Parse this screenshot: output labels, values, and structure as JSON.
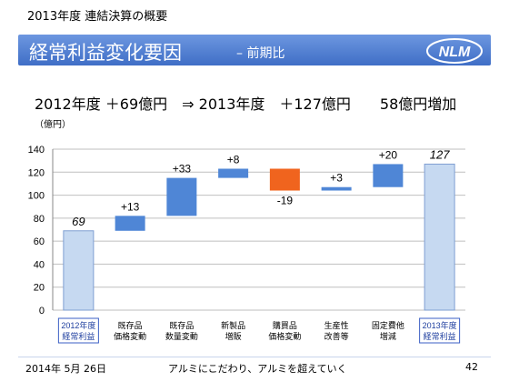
{
  "header": {
    "caption": "2013年度 連結決算の概要",
    "title": "経常利益変化要因",
    "subtitle": "– 前期比",
    "logo_text": "NLM"
  },
  "headline": "2012年度 ＋69億円　⇒ 2013年度　＋127億円　　58億円増加",
  "footer": {
    "date": "2014年 5月 26日",
    "slogan": "アルミにこだわり、アルミを超えていく",
    "page": "42"
  },
  "chart_data": {
    "type": "bar",
    "subtype": "waterfall",
    "unit_label": "（億円）",
    "ylim": [
      0,
      140
    ],
    "yticks": [
      0,
      20,
      40,
      60,
      80,
      100,
      120,
      140
    ],
    "grid": true,
    "categories": [
      "2012年度\n経常利益",
      "既存品\n価格変動",
      "既存品\n数量変動",
      "新製品\n増販",
      "購買品\n価格変動",
      "生産性\n改善等",
      "固定費他\n増減",
      "2013年度\n経常利益"
    ],
    "steps": [
      {
        "kind": "total",
        "start": 0,
        "end": 69,
        "label": "69"
      },
      {
        "kind": "delta",
        "start": 69,
        "end": 82,
        "label": "+13"
      },
      {
        "kind": "delta",
        "start": 82,
        "end": 115,
        "label": "+33"
      },
      {
        "kind": "delta",
        "start": 115,
        "end": 123,
        "label": "+8"
      },
      {
        "kind": "delta",
        "start": 123,
        "end": 104,
        "label": "-19"
      },
      {
        "kind": "delta",
        "start": 104,
        "end": 107,
        "label": "+3"
      },
      {
        "kind": "delta",
        "start": 107,
        "end": 127,
        "label": "+20"
      },
      {
        "kind": "total",
        "start": 0,
        "end": 127,
        "label": "127"
      }
    ],
    "colors": {
      "increase": "#4f86d6",
      "decrease": "#f0641e",
      "total_fill": "#c6d9f1",
      "total_stroke": "#7f9fd2",
      "category_box": "#3b5fc4"
    }
  }
}
